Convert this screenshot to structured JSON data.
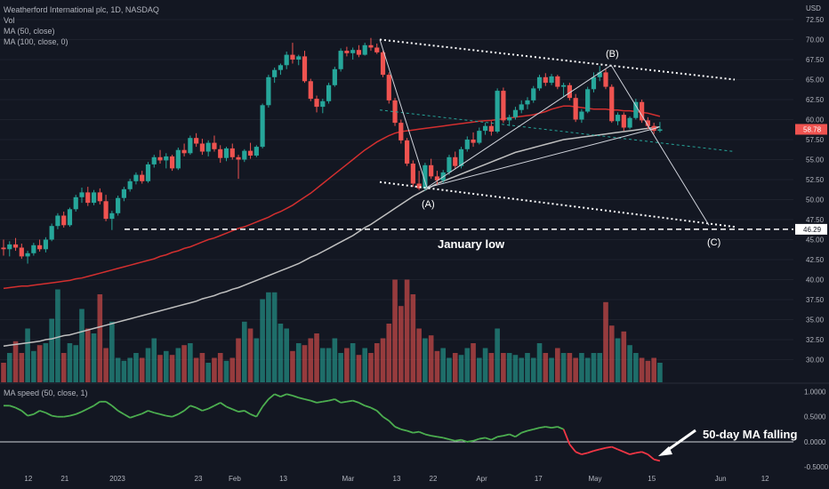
{
  "header": {
    "title": "Weatherford International plc, 1D, NASDAQ",
    "vol": "Vol",
    "ma50": "MA (50, close)",
    "ma100": "MA (100, close, 0)",
    "ma_speed": "MA speed (50, close, 1)"
  },
  "colors": {
    "background": "#131722",
    "up": "#26a69a",
    "down": "#ef5350",
    "ma50": "#d32f2f",
    "ma100": "#c0c0c0",
    "ma_speed_up": "#4caf50",
    "ma_speed_down": "#f23645",
    "annotation": "#ffffff"
  },
  "chart_data": [
    {
      "type": "candlestick",
      "title": "Weatherford International plc, 1D, NASDAQ",
      "currency": "USD",
      "ylim": [
        28.5,
        72.5
      ],
      "y_ticks": [
        72.5,
        70.0,
        67.5,
        65.0,
        62.5,
        60.0,
        57.5,
        55.0,
        52.5,
        50.0,
        47.5,
        45.0,
        42.5,
        40.0,
        37.5,
        35.0,
        32.5,
        30.0
      ],
      "y_tick_labels": [
        "72.50",
        "70.00",
        "67.50",
        "65.00",
        "62.50",
        "60.00",
        "57.50",
        "55.00",
        "52.50",
        "50.00",
        "47.50",
        "45.00",
        "42.50",
        "40.00",
        "37.50",
        "35.00",
        "32.50",
        "30.00"
      ],
      "x_tick_labels": [
        "12",
        "21",
        "2023",
        "23",
        "Feb",
        "13",
        "Mar",
        "13",
        "22",
        "Apr",
        "17",
        "May",
        "15",
        "Jun",
        "12"
      ],
      "x_tick_dates": [
        "2022-12-12",
        "2022-12-21",
        "2023-01-03",
        "2023-01-23",
        "2023-02-01",
        "2023-02-13",
        "2023-03-01",
        "2023-03-13",
        "2023-03-22",
        "2023-04-03",
        "2023-04-17",
        "2023-05-01",
        "2023-05-15",
        "2023-06-01",
        "2023-06-12"
      ],
      "x_range": [
        "2022-12-05",
        "2023-06-19"
      ],
      "last_price": 58.78,
      "last_price_label": "58.78",
      "january_low": 46.29,
      "january_low_label": "46.29",
      "ohlc": [
        [
          44.0,
          45.0,
          43.0,
          43.8
        ],
        [
          43.8,
          44.8,
          42.9,
          44.4
        ],
        [
          44.4,
          45.2,
          43.6,
          44.0
        ],
        [
          44.0,
          44.5,
          42.6,
          42.9
        ],
        [
          42.9,
          43.6,
          42.0,
          43.3
        ],
        [
          43.3,
          44.6,
          43.0,
          44.3
        ],
        [
          44.3,
          45.0,
          43.5,
          43.8
        ],
        [
          43.8,
          45.3,
          43.4,
          45.0
        ],
        [
          45.0,
          47.0,
          44.8,
          46.7
        ],
        [
          46.7,
          48.3,
          46.3,
          48.0
        ],
        [
          48.0,
          48.5,
          46.5,
          46.8
        ],
        [
          46.8,
          49.0,
          46.6,
          48.8
        ],
        [
          48.8,
          50.6,
          48.5,
          50.3
        ],
        [
          50.3,
          51.5,
          49.6,
          50.9
        ],
        [
          50.9,
          51.6,
          49.2,
          49.6
        ],
        [
          49.6,
          51.2,
          49.3,
          50.9
        ],
        [
          50.9,
          51.4,
          49.4,
          49.8
        ],
        [
          49.8,
          50.6,
          47.3,
          47.6
        ],
        [
          47.6,
          48.6,
          46.2,
          48.3
        ],
        [
          48.3,
          50.5,
          48.0,
          50.2
        ],
        [
          50.2,
          51.6,
          49.8,
          51.3
        ],
        [
          51.3,
          52.6,
          51.0,
          52.3
        ],
        [
          52.3,
          53.4,
          51.9,
          53.1
        ],
        [
          53.1,
          53.6,
          52.0,
          52.3
        ],
        [
          52.3,
          54.7,
          52.1,
          54.4
        ],
        [
          54.4,
          55.6,
          54.0,
          55.3
        ],
        [
          55.3,
          56.2,
          54.5,
          54.9
        ],
        [
          54.9,
          55.8,
          53.9,
          55.4
        ],
        [
          55.4,
          55.6,
          53.6,
          53.9
        ],
        [
          53.9,
          56.5,
          53.7,
          56.2
        ],
        [
          56.2,
          57.0,
          55.4,
          55.8
        ],
        [
          55.8,
          58.0,
          55.6,
          57.7
        ],
        [
          57.7,
          58.3,
          56.6,
          57.0
        ],
        [
          57.0,
          57.6,
          55.6,
          56.0
        ],
        [
          56.0,
          57.4,
          55.4,
          57.1
        ],
        [
          57.1,
          58.0,
          56.0,
          56.3
        ],
        [
          56.3,
          56.8,
          54.6,
          55.2
        ],
        [
          55.2,
          56.6,
          54.8,
          56.4
        ],
        [
          56.4,
          57.0,
          55.0,
          55.3
        ],
        [
          55.3,
          55.6,
          52.6,
          55.0
        ],
        [
          55.0,
          56.3,
          54.7,
          56.1
        ],
        [
          56.1,
          57.1,
          55.1,
          55.5
        ],
        [
          55.5,
          56.8,
          55.3,
          56.6
        ],
        [
          56.6,
          62.0,
          56.4,
          61.8
        ],
        [
          61.8,
          65.6,
          61.5,
          65.3
        ],
        [
          65.3,
          66.5,
          64.6,
          66.2
        ],
        [
          66.2,
          67.0,
          65.6,
          66.8
        ],
        [
          66.8,
          68.5,
          66.3,
          68.1
        ],
        [
          68.1,
          69.6,
          67.0,
          67.5
        ],
        [
          67.5,
          68.1,
          66.8,
          67.9
        ],
        [
          67.9,
          68.6,
          64.6,
          64.8
        ],
        [
          64.8,
          65.1,
          62.3,
          62.6
        ],
        [
          62.6,
          63.0,
          60.9,
          61.6
        ],
        [
          61.6,
          62.6,
          60.8,
          62.3
        ],
        [
          62.3,
          64.6,
          62.0,
          64.3
        ],
        [
          64.3,
          66.6,
          64.1,
          66.3
        ],
        [
          66.3,
          68.9,
          66.0,
          68.6
        ],
        [
          68.6,
          69.1,
          67.9,
          68.3
        ],
        [
          68.3,
          69.0,
          67.5,
          68.7
        ],
        [
          68.7,
          69.3,
          67.8,
          68.1
        ],
        [
          68.1,
          69.6,
          68.0,
          69.3
        ],
        [
          69.3,
          70.2,
          68.6,
          69.0
        ],
        [
          69.0,
          69.5,
          68.2,
          68.4
        ],
        [
          68.4,
          68.6,
          65.3,
          65.6
        ],
        [
          65.6,
          65.9,
          62.0,
          62.4
        ],
        [
          62.4,
          62.7,
          59.2,
          59.6
        ],
        [
          59.6,
          60.0,
          57.0,
          57.4
        ],
        [
          57.4,
          57.7,
          54.2,
          54.5
        ],
        [
          54.5,
          54.9,
          51.6,
          52.0
        ],
        [
          52.0,
          53.6,
          51.2,
          51.4
        ],
        [
          51.4,
          54.6,
          51.1,
          54.3
        ],
        [
          54.3,
          55.1,
          52.6,
          52.9
        ],
        [
          52.9,
          53.6,
          51.9,
          52.4
        ],
        [
          52.4,
          53.7,
          52.1,
          53.4
        ],
        [
          53.4,
          55.6,
          53.1,
          55.3
        ],
        [
          55.3,
          56.0,
          53.8,
          54.2
        ],
        [
          54.2,
          56.6,
          53.9,
          56.3
        ],
        [
          56.3,
          57.9,
          56.0,
          57.5
        ],
        [
          57.5,
          58.4,
          56.6,
          57.1
        ],
        [
          57.1,
          59.0,
          56.9,
          58.6
        ],
        [
          58.6,
          59.6,
          58.1,
          59.2
        ],
        [
          59.2,
          59.8,
          58.0,
          58.5
        ],
        [
          58.5,
          63.9,
          58.3,
          63.6
        ],
        [
          63.6,
          64.0,
          59.6,
          59.9
        ],
        [
          59.9,
          60.6,
          59.2,
          60.3
        ],
        [
          60.3,
          61.6,
          60.0,
          61.2
        ],
        [
          61.2,
          62.4,
          60.8,
          61.9
        ],
        [
          61.9,
          62.8,
          61.3,
          62.4
        ],
        [
          62.4,
          64.2,
          62.1,
          63.9
        ],
        [
          63.9,
          65.6,
          63.6,
          65.3
        ],
        [
          65.3,
          65.8,
          64.2,
          64.6
        ],
        [
          64.6,
          65.7,
          64.3,
          65.4
        ],
        [
          65.4,
          65.6,
          63.8,
          64.1
        ],
        [
          64.1,
          64.6,
          62.9,
          64.3
        ],
        [
          64.3,
          64.6,
          62.4,
          62.7
        ],
        [
          62.7,
          63.2,
          59.7,
          60.0
        ],
        [
          60.0,
          61.3,
          59.6,
          61.0
        ],
        [
          61.0,
          64.1,
          60.8,
          63.8
        ],
        [
          63.8,
          65.9,
          63.4,
          65.3
        ],
        [
          65.3,
          66.7,
          64.8,
          65.9
        ],
        [
          65.9,
          66.3,
          63.8,
          64.1
        ],
        [
          64.1,
          64.4,
          59.6,
          59.8
        ],
        [
          59.8,
          60.9,
          59.3,
          60.6
        ],
        [
          60.6,
          60.9,
          58.6,
          59.0
        ],
        [
          59.0,
          60.4,
          58.8,
          60.2
        ],
        [
          60.2,
          62.6,
          60.0,
          62.2
        ],
        [
          62.2,
          62.5,
          59.6,
          59.9
        ],
        [
          59.9,
          60.3,
          58.8,
          59.2
        ],
        [
          59.2,
          59.6,
          58.2,
          58.6
        ],
        [
          58.6,
          59.7,
          58.4,
          58.78
        ]
      ],
      "volume_relative": [
        0.2,
        0.3,
        0.42,
        0.3,
        0.55,
        0.32,
        0.38,
        0.4,
        0.65,
        0.95,
        0.3,
        0.4,
        0.38,
        0.75,
        0.55,
        0.5,
        0.9,
        0.35,
        0.62,
        0.25,
        0.22,
        0.25,
        0.3,
        0.25,
        0.35,
        0.45,
        0.28,
        0.32,
        0.28,
        0.35,
        0.38,
        0.4,
        0.25,
        0.3,
        0.2,
        0.25,
        0.3,
        0.22,
        0.25,
        0.45,
        0.62,
        0.55,
        0.45,
        0.85,
        0.92,
        0.92,
        0.6,
        0.55,
        0.32,
        0.4,
        0.38,
        0.45,
        0.5,
        0.35,
        0.35,
        0.45,
        0.3,
        0.35,
        0.4,
        0.28,
        0.35,
        0.3,
        0.4,
        0.45,
        0.6,
        1.05,
        0.78,
        1.05,
        0.9,
        0.55,
        0.45,
        0.48,
        0.32,
        0.35,
        0.25,
        0.3,
        0.28,
        0.35,
        0.4,
        0.25,
        0.35,
        0.3,
        0.55,
        0.3,
        0.3,
        0.28,
        0.25,
        0.3,
        0.25,
        0.4,
        0.3,
        0.25,
        0.35,
        0.3,
        0.3,
        0.25,
        0.3,
        0.25,
        0.3,
        0.3,
        0.82,
        0.58,
        0.45,
        0.52,
        0.38,
        0.3,
        0.25,
        0.22,
        0.25,
        0.2
      ],
      "ma50": [
        38.9,
        39.0,
        39.1,
        39.2,
        39.2,
        39.3,
        39.4,
        39.5,
        39.6,
        39.7,
        39.8,
        39.9,
        40.1,
        40.2,
        40.4,
        40.6,
        40.8,
        41.0,
        41.2,
        41.4,
        41.6,
        41.8,
        42.0,
        42.2,
        42.4,
        42.6,
        42.9,
        43.1,
        43.4,
        43.6,
        43.9,
        44.1,
        44.4,
        44.7,
        45.0,
        45.2,
        45.5,
        45.8,
        46.1,
        46.4,
        46.6,
        46.9,
        47.2,
        47.5,
        47.8,
        48.2,
        48.5,
        48.9,
        49.3,
        49.8,
        50.3,
        50.8,
        51.4,
        52.0,
        52.6,
        53.2,
        53.8,
        54.4,
        55.0,
        55.6,
        56.2,
        56.7,
        57.2,
        57.6,
        58.0,
        58.3,
        58.5,
        58.6,
        58.7,
        58.8,
        58.9,
        59.0,
        59.1,
        59.2,
        59.3,
        59.4,
        59.5,
        59.6,
        59.7,
        59.8,
        59.85,
        59.9,
        60.0,
        60.1,
        60.2,
        60.3,
        60.4,
        60.5,
        60.6,
        60.8,
        61.0,
        61.3,
        61.5,
        61.7,
        61.7,
        61.6,
        61.5,
        61.4,
        61.3,
        61.3,
        61.3,
        61.2,
        61.2,
        61.1,
        61.1,
        61.0,
        60.9,
        60.8,
        60.6,
        60.4
      ],
      "ma100": [
        31.7,
        31.8,
        31.9,
        32.0,
        32.1,
        32.2,
        32.3,
        32.5,
        32.6,
        32.8,
        33.0,
        33.1,
        33.3,
        33.5,
        33.7,
        33.9,
        34.1,
        34.3,
        34.5,
        34.7,
        34.9,
        35.1,
        35.3,
        35.5,
        35.7,
        35.9,
        36.1,
        36.3,
        36.5,
        36.7,
        36.9,
        37.1,
        37.3,
        37.6,
        37.8,
        38.0,
        38.3,
        38.5,
        38.8,
        39.0,
        39.3,
        39.6,
        39.9,
        40.2,
        40.5,
        40.8,
        41.1,
        41.4,
        41.7,
        42.0,
        42.4,
        42.8,
        43.1,
        43.5,
        43.9,
        44.3,
        44.7,
        45.1,
        45.5,
        46.0,
        46.5,
        46.9,
        47.4,
        47.9,
        48.4,
        48.9,
        49.4,
        49.9,
        50.4,
        50.8,
        51.2,
        51.6,
        52.0,
        52.3,
        52.6,
        52.9,
        53.2,
        53.5,
        53.8,
        54.1,
        54.4,
        54.7,
        55.0,
        55.3,
        55.6,
        55.9,
        56.1,
        56.3,
        56.5,
        56.7,
        56.9,
        57.1,
        57.3,
        57.5,
        57.6,
        57.7,
        57.8,
        57.9,
        58.0,
        58.1,
        58.2,
        58.3,
        58.4,
        58.5,
        58.6,
        58.7,
        58.8,
        58.9,
        59.0,
        59.1
      ],
      "annotations": {
        "wave_a": "(A)",
        "wave_b": "(B)",
        "wave_c": "(C)",
        "january_low_text": "January low"
      }
    },
    {
      "type": "line",
      "title": "MA speed (50, close, 1)",
      "ylim": [
        -0.55,
        1.15
      ],
      "y_ticks": [
        1.0,
        0.5,
        0.0,
        -0.5
      ],
      "y_tick_labels": [
        "1.0000",
        "0.5000",
        "0.0000",
        "-0.5000"
      ],
      "zero_line": 0.0,
      "values": [
        0.72,
        0.72,
        0.68,
        0.62,
        0.52,
        0.55,
        0.62,
        0.58,
        0.52,
        0.5,
        0.5,
        0.52,
        0.55,
        0.6,
        0.66,
        0.72,
        0.8,
        0.8,
        0.72,
        0.62,
        0.55,
        0.48,
        0.52,
        0.56,
        0.62,
        0.58,
        0.55,
        0.52,
        0.5,
        0.55,
        0.62,
        0.72,
        0.68,
        0.62,
        0.66,
        0.72,
        0.78,
        0.7,
        0.65,
        0.6,
        0.62,
        0.55,
        0.5,
        0.7,
        0.85,
        0.95,
        0.9,
        0.95,
        0.92,
        0.88,
        0.85,
        0.82,
        0.78,
        0.8,
        0.82,
        0.85,
        0.78,
        0.8,
        0.82,
        0.78,
        0.72,
        0.68,
        0.62,
        0.5,
        0.42,
        0.3,
        0.25,
        0.22,
        0.18,
        0.2,
        0.15,
        0.12,
        0.1,
        0.08,
        0.05,
        0.02,
        0.04,
        0.0,
        0.02,
        0.06,
        0.08,
        0.04,
        0.1,
        0.12,
        0.15,
        0.1,
        0.18,
        0.22,
        0.25,
        0.28,
        0.3,
        0.28,
        0.3,
        0.25,
        -0.05,
        -0.2,
        -0.25,
        -0.22,
        -0.18,
        -0.15,
        -0.12,
        -0.1,
        -0.15,
        -0.2,
        -0.25,
        -0.22,
        -0.2,
        -0.25,
        -0.35,
        -0.38
      ],
      "annotation": "50-day MA falling"
    }
  ]
}
